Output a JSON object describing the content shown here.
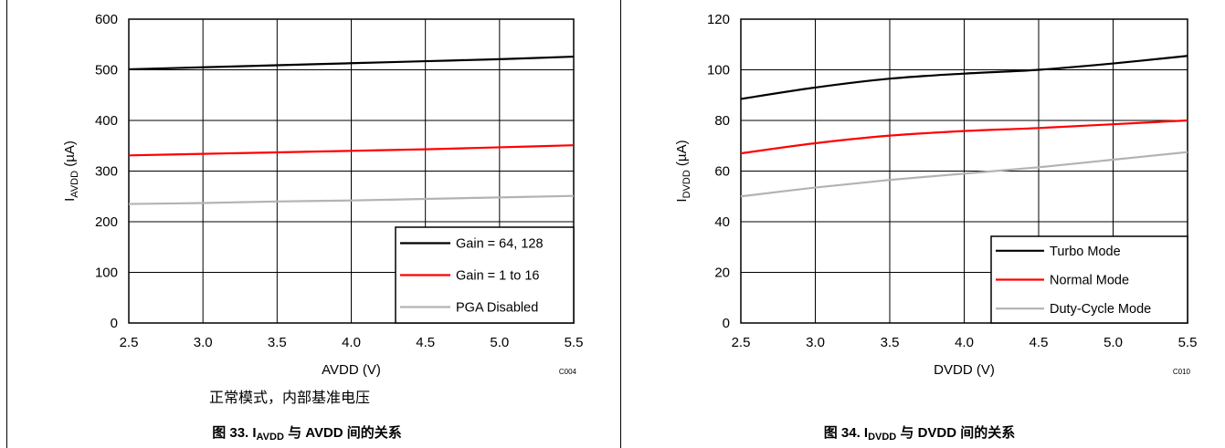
{
  "chart_data": [
    {
      "type": "line",
      "xlabel": "AVDD (V)",
      "ylabel_main": "I",
      "ylabel_sub": "AVDD",
      "ylabel_unit": " (µA)",
      "x_ticks": [
        "2.5",
        "3.0",
        "3.5",
        "4.0",
        "4.5",
        "5.0",
        "5.5"
      ],
      "y_ticks": [
        "0",
        "100",
        "200",
        "300",
        "400",
        "500",
        "600"
      ],
      "xlim": [
        2.5,
        5.5
      ],
      "ylim": [
        0,
        600
      ],
      "grid": true,
      "legend_position": "bottom-right",
      "code": "C004",
      "x": [
        2.5,
        3.0,
        3.5,
        4.0,
        4.5,
        5.0,
        5.5
      ],
      "series": [
        {
          "name": "Gain = 64, 128",
          "color": "#000000",
          "values": [
            501,
            505,
            509,
            513,
            517,
            521,
            526
          ]
        },
        {
          "name": "Gain = 1 to 16",
          "color": "#ff0000",
          "values": [
            331,
            334,
            337,
            340,
            343,
            347,
            351
          ]
        },
        {
          "name": "PGA Disabled",
          "color": "#b3b3b3",
          "values": [
            235,
            237,
            240,
            242,
            245,
            248,
            251
          ]
        }
      ]
    },
    {
      "type": "line",
      "xlabel": "DVDD (V)",
      "ylabel_main": "I",
      "ylabel_sub": "DVDD",
      "ylabel_unit": " (µA)",
      "x_ticks": [
        "2.5",
        "3.0",
        "3.5",
        "4.0",
        "4.5",
        "5.0",
        "5.5"
      ],
      "y_ticks": [
        "0",
        "20",
        "40",
        "60",
        "80",
        "100",
        "120"
      ],
      "xlim": [
        2.5,
        5.5
      ],
      "ylim": [
        0,
        120
      ],
      "grid": true,
      "legend_position": "bottom-right",
      "code": "C010",
      "x": [
        2.5,
        3.0,
        3.5,
        4.0,
        4.5,
        5.0,
        5.5
      ],
      "series": [
        {
          "name": "Turbo Mode",
          "color": "#000000",
          "values": [
            88.5,
            93,
            96.5,
            98.5,
            100,
            102.5,
            105.5
          ]
        },
        {
          "name": "Normal Mode",
          "color": "#ff0000",
          "values": [
            67,
            71,
            74,
            75.8,
            77,
            78.5,
            80
          ]
        },
        {
          "name": "Duty-Cycle Mode",
          "color": "#b3b3b3",
          "values": [
            50,
            53.5,
            56.5,
            59,
            61.5,
            64.5,
            67.5
          ]
        }
      ]
    }
  ],
  "left_note": "正常模式，内部基准电压",
  "captions": [
    {
      "prefix": "图 33. I",
      "sub": "AVDD",
      "suffix": " 与 AVDD 间的关系"
    },
    {
      "prefix": "图 34. I",
      "sub": "DVDD",
      "suffix": " 与 DVDD 间的关系"
    }
  ]
}
